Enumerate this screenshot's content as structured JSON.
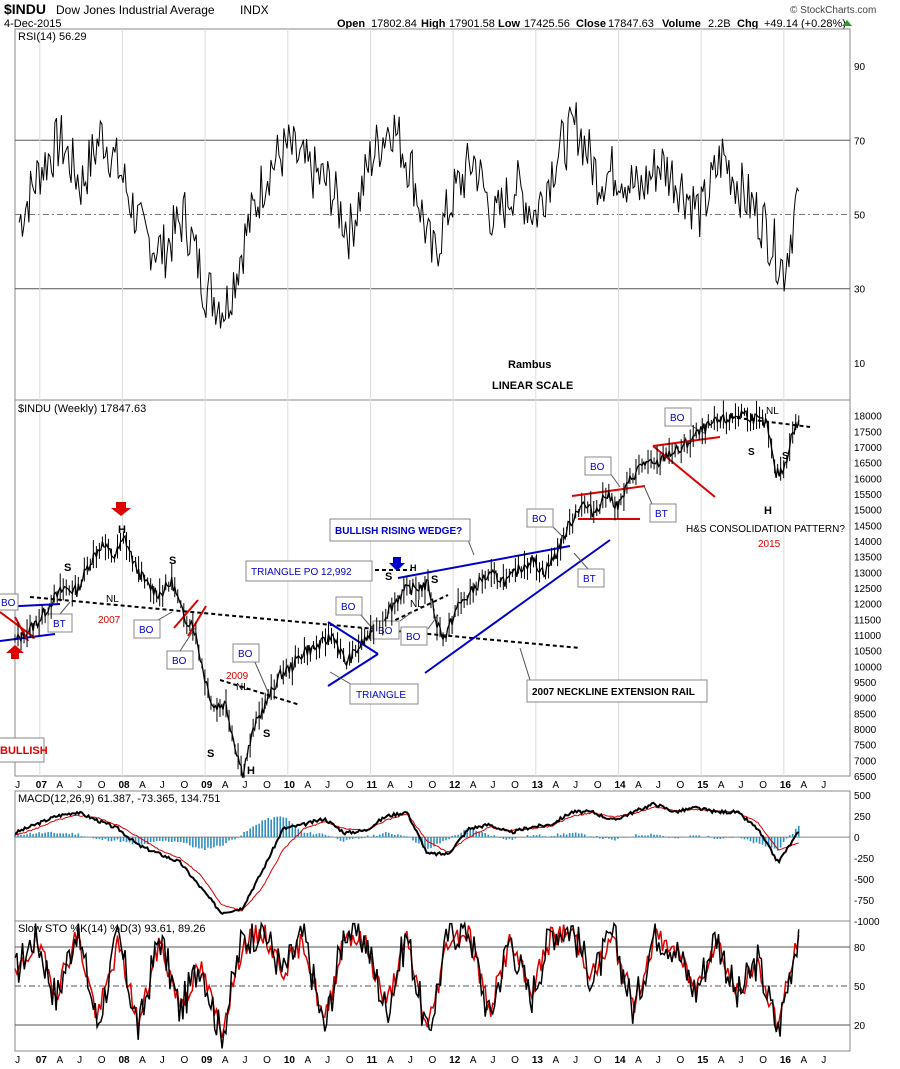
{
  "header": {
    "symbol": "$INDU",
    "name": "Dow Jones Industrial Average",
    "exchange": "INDX",
    "date": "4-Dec-2015",
    "open_label": "Open",
    "open": "17802.84",
    "high_label": "High",
    "high": "17901.58",
    "low_label": "Low",
    "low": "17425.56",
    "close_label": "Close",
    "close": "17847.63",
    "volume_label": "Volume",
    "volume": "2.2B",
    "chg_label": "Chg",
    "chg": "+49.14 (+0.28%)",
    "watermark": "© StockCharts.com"
  },
  "colors": {
    "price": "#000000",
    "blue": "#0000cc",
    "red": "#dd0000",
    "grid": "#555555",
    "gridlight": "#bbbbbb",
    "green_fill": "#4f6b4f",
    "brown_fill": "#8a5a4a",
    "macd_hist": "#2f8fbf"
  },
  "chart_data": [
    {
      "type": "line",
      "title": "RSI(14) 56.29",
      "panel": "rsi",
      "ylim": [
        0,
        100
      ],
      "y_ticks": [
        10,
        30,
        50,
        70,
        90
      ],
      "reference_lines": [
        30,
        50,
        70
      ],
      "x": [
        2006.5,
        2006.75,
        2007.0,
        2007.25,
        2007.5,
        2007.75,
        2008.0,
        2008.25,
        2008.5,
        2008.75,
        2009.0,
        2009.25,
        2009.5,
        2009.75,
        2010.0,
        2010.25,
        2010.5,
        2010.75,
        2011.0,
        2011.25,
        2011.5,
        2011.75,
        2012.0,
        2012.25,
        2012.5,
        2012.75,
        2013.0,
        2013.25,
        2013.5,
        2013.75,
        2014.0,
        2014.25,
        2014.5,
        2014.75,
        2015.0,
        2015.25,
        2015.5,
        2015.75,
        2015.93
      ],
      "values": [
        48,
        62,
        70,
        58,
        72,
        60,
        44,
        40,
        50,
        30,
        25,
        45,
        62,
        68,
        62,
        58,
        45,
        65,
        75,
        62,
        38,
        55,
        65,
        48,
        58,
        50,
        66,
        74,
        60,
        62,
        56,
        64,
        58,
        50,
        66,
        56,
        48,
        35,
        56.29
      ]
    },
    {
      "type": "line",
      "title": "$INDU (Weekly) 17847.63",
      "panel": "price",
      "ylim": [
        6500,
        18500
      ],
      "y_ticks": [
        6500,
        7000,
        7500,
        8000,
        8500,
        9000,
        9500,
        10000,
        10500,
        11000,
        11500,
        12000,
        12500,
        13000,
        13500,
        14000,
        14500,
        15000,
        15500,
        16000,
        16500,
        17000,
        17500,
        18000
      ],
      "x": [
        2006.45,
        2006.6,
        2006.75,
        2006.9,
        2007.05,
        2007.2,
        2007.35,
        2007.5,
        2007.65,
        2007.78,
        2007.9,
        2008.05,
        2008.2,
        2008.35,
        2008.5,
        2008.6,
        2008.75,
        2008.85,
        2009.0,
        2009.1,
        2009.2,
        2009.35,
        2009.5,
        2009.65,
        2009.8,
        2009.95,
        2010.1,
        2010.3,
        2010.45,
        2010.55,
        2010.7,
        2010.85,
        2011.0,
        2011.15,
        2011.3,
        2011.45,
        2011.55,
        2011.65,
        2011.8,
        2011.95,
        2012.1,
        2012.25,
        2012.4,
        2012.55,
        2012.7,
        2012.85,
        2013.0,
        2013.15,
        2013.3,
        2013.45,
        2013.6,
        2013.75,
        2013.9,
        2014.05,
        2014.2,
        2014.35,
        2014.5,
        2014.65,
        2014.8,
        2014.95,
        2015.1,
        2015.25,
        2015.4,
        2015.55,
        2015.65,
        2015.75,
        2015.85,
        2015.93
      ],
      "values": [
        10800,
        11100,
        11500,
        12100,
        12500,
        12400,
        13300,
        13900,
        13500,
        14100,
        13200,
        12600,
        12300,
        12700,
        11500,
        11400,
        9600,
        8700,
        8800,
        7600,
        6600,
        8100,
        8900,
        9700,
        10000,
        10500,
        10600,
        11000,
        10100,
        10400,
        10900,
        11300,
        11900,
        12400,
        12500,
        12600,
        11400,
        10900,
        11900,
        12300,
        12800,
        12900,
        12700,
        13100,
        13400,
        13000,
        13600,
        14500,
        15200,
        14900,
        15500,
        15100,
        16000,
        16500,
        16400,
        16800,
        16900,
        17300,
        17600,
        17800,
        17900,
        18100,
        17900,
        17700,
        16100,
        16300,
        17400,
        17847.63
      ]
    },
    {
      "type": "line",
      "title": "MACD(12,26,9) 61.387, -73.365, 134.751",
      "panel": "macd",
      "ylim": [
        -1000,
        550
      ],
      "y_ticks": [
        -1000,
        -750,
        -500,
        -250,
        0,
        250,
        500
      ],
      "series": [
        {
          "name": "MACD",
          "values": [
            50,
            150,
            250,
            300,
            200,
            100,
            -100,
            -200,
            -300,
            -600,
            -900,
            -850,
            -400,
            100,
            150,
            220,
            50,
            80,
            250,
            300,
            -200,
            -200,
            100,
            150,
            50,
            120,
            150,
            300,
            300,
            200,
            300,
            400,
            300,
            350,
            300,
            300,
            100,
            -300,
            61.387
          ]
        },
        {
          "name": "Signal",
          "values": [
            20,
            100,
            200,
            260,
            230,
            140,
            0,
            -150,
            -250,
            -450,
            -800,
            -880,
            -600,
            -150,
            100,
            180,
            100,
            80,
            200,
            280,
            -50,
            -180,
            0,
            120,
            80,
            100,
            130,
            250,
            290,
            240,
            280,
            360,
            320,
            330,
            310,
            300,
            180,
            -150,
            -73.365
          ]
        }
      ],
      "histogram": [
        30,
        50,
        50,
        40,
        -30,
        -40,
        -100,
        -50,
        -50,
        -150,
        -100,
        30,
        200,
        250,
        50,
        40,
        -50,
        0,
        50,
        20,
        -150,
        -20,
        100,
        30,
        -30,
        20,
        20,
        50,
        10,
        -40,
        20,
        40,
        -20,
        20,
        -10,
        0,
        -80,
        -150,
        134.751
      ]
    },
    {
      "type": "line",
      "title": "Slow STO %K(14) %D(3) 93.61, 89.26",
      "panel": "sto",
      "ylim": [
        0,
        100
      ],
      "y_ticks": [
        20,
        50,
        80
      ],
      "reference_lines": [
        20,
        50,
        80
      ],
      "series": [
        {
          "name": "%K",
          "values": [
            60,
            90,
            40,
            95,
            20,
            88,
            15,
            90,
            30,
            70,
            10,
            85,
            95,
            60,
            90,
            15,
            95,
            85,
            30,
            90,
            10,
            90,
            95,
            25,
            88,
            40,
            92,
            95,
            55,
            90,
            30,
            92,
            80,
            45,
            90,
            40,
            70,
            15,
            93.61
          ]
        },
        {
          "name": "%D",
          "values": [
            55,
            85,
            45,
            90,
            25,
            82,
            20,
            85,
            35,
            65,
            15,
            80,
            92,
            62,
            85,
            20,
            92,
            82,
            35,
            86,
            15,
            86,
            92,
            30,
            84,
            45,
            88,
            92,
            58,
            86,
            35,
            88,
            78,
            48,
            86,
            45,
            66,
            20,
            89.26
          ]
        }
      ]
    }
  ],
  "x_axis": {
    "ticks": [
      "J",
      "07",
      "A",
      "J",
      "O",
      "08",
      "A",
      "J",
      "O",
      "09",
      "A",
      "J",
      "O",
      "10",
      "A",
      "J",
      "O",
      "11",
      "A",
      "J",
      "O",
      "12",
      "A",
      "J",
      "O",
      "13",
      "A",
      "J",
      "O",
      "14",
      "A",
      "J",
      "O",
      "15",
      "A",
      "J",
      "O",
      "16",
      "A",
      "J"
    ],
    "range": [
      2006.45,
      2016.55
    ]
  },
  "annotations": {
    "rambus": "Rambus",
    "linear_scale": "LINEAR SCALE",
    "bullish": "BULLISH",
    "h_left": "H",
    "s_left1": "S",
    "s_left2": "S",
    "nl_2007": "NL",
    "year_2007": "2007",
    "bo1": "BO",
    "bt1": "BT",
    "bo_2008a": "BO",
    "bo_2008b": "BO",
    "bo_2009": "BO",
    "year_2009": "2009",
    "nl_2009": "NL",
    "s_2009a": "S",
    "s_2009b": "S",
    "h_2009": "H",
    "triangle_po": "TRIANGLE PO 12,992",
    "bo_triangle": "BO",
    "triangle": "TRIANGLE",
    "bullish_wedge": "BULLISH RISING WEDGE?",
    "h_2011": "H",
    "s_2011a": "S",
    "s_2011b": "S",
    "nl_2011": "NL",
    "bo_2011a": "BO",
    "bo_2011b": "BO",
    "neckline_rail": "2007 NECKLINE EXTENSION RAIL",
    "bo_2013": "BO",
    "bt_2013": "BT",
    "bo_2014a": "BO",
    "bt_2014": "BT",
    "bo_2014b": "BO",
    "nl_2015": "NL",
    "s_2015a": "S",
    "s_2015b": "S",
    "h_2015": "H",
    "hs_pattern": "H&S CONSOLIDATION PATTERN?",
    "year_2015": "2015"
  }
}
